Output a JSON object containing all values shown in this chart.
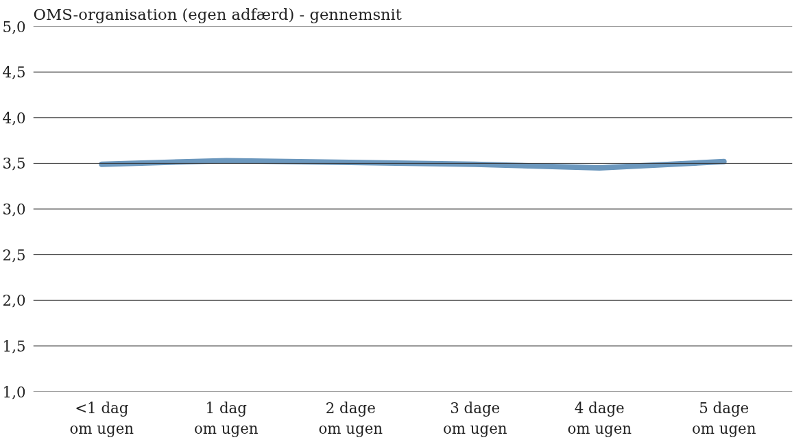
{
  "chart_data": {
    "type": "line",
    "title": "OMS-organisation (egen adfærd) - gennemsnit",
    "categories": [
      "<1 dag om ugen",
      "1 dag om ugen",
      "2 dage om ugen",
      "3 dage om ugen",
      "4 dage om ugen",
      "5 dage om ugen"
    ],
    "series": [
      {
        "color": "#6b97bd",
        "values": [
          3.49,
          3.53,
          3.51,
          3.49,
          3.45,
          3.52
        ]
      }
    ],
    "ylim": [
      1.0,
      5.0
    ],
    "yticks": [
      {
        "value": 1.0,
        "label": "1,0"
      },
      {
        "value": 1.5,
        "label": "1,5"
      },
      {
        "value": 2.0,
        "label": "2,0"
      },
      {
        "value": 2.5,
        "label": "2,5"
      },
      {
        "value": 3.0,
        "label": "3,0"
      },
      {
        "value": 3.5,
        "label": "3,5"
      },
      {
        "value": 4.0,
        "label": "4,0"
      },
      {
        "value": 4.5,
        "label": "4,5"
      },
      {
        "value": 5.0,
        "label": "5,0"
      }
    ],
    "grid": "y",
    "marker": "none",
    "line_style": "solid"
  }
}
